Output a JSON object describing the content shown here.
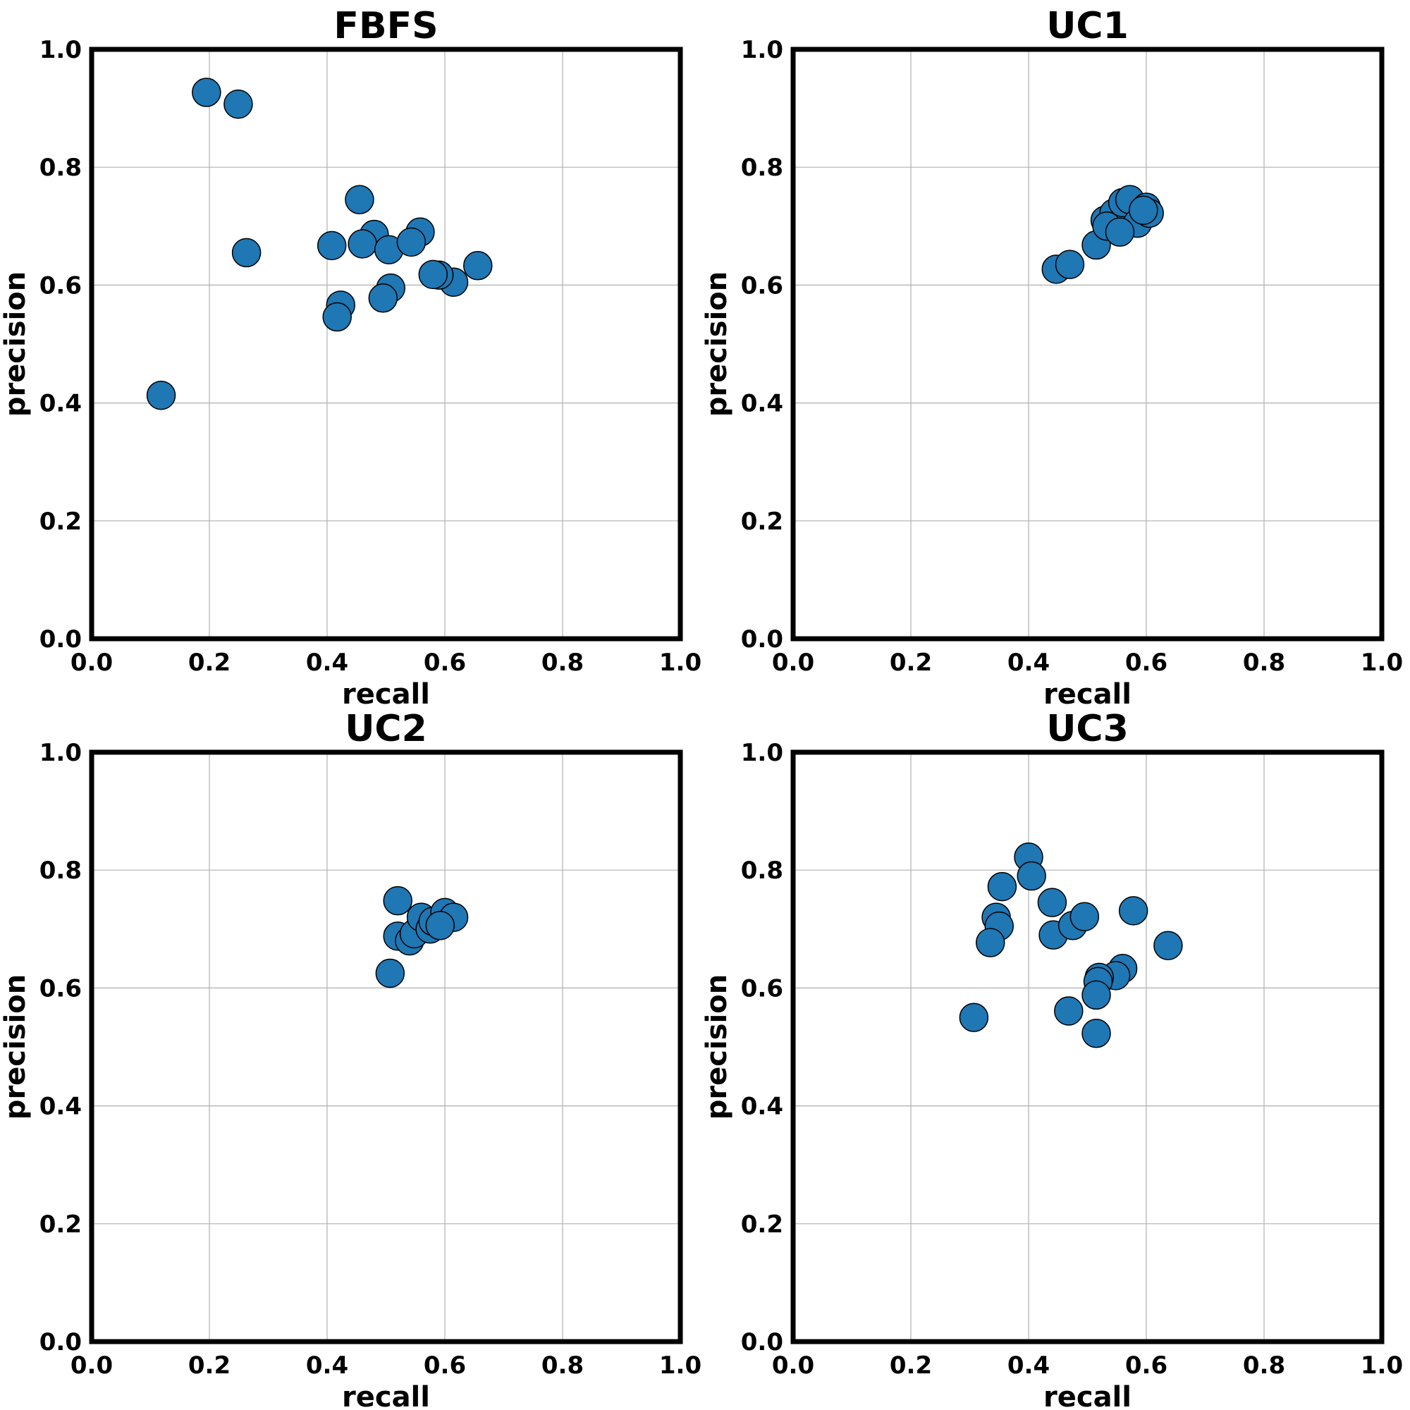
{
  "chart_data": [
    {
      "type": "scatter",
      "title": "FBFS",
      "xlabel": "recall",
      "ylabel": "precision",
      "xlim": [
        0,
        1
      ],
      "ylim": [
        0,
        1
      ],
      "xticks": [
        "0.0",
        "0.2",
        "0.4",
        "0.6",
        "0.8",
        "1.0"
      ],
      "yticks": [
        "0.0",
        "0.2",
        "0.4",
        "0.6",
        "0.8",
        "1.0"
      ],
      "grid": true,
      "color": "#1f77b4",
      "points": [
        {
          "x": 0.195,
          "y": 0.927
        },
        {
          "x": 0.249,
          "y": 0.907
        },
        {
          "x": 0.263,
          "y": 0.655
        },
        {
          "x": 0.118,
          "y": 0.413
        },
        {
          "x": 0.455,
          "y": 0.745
        },
        {
          "x": 0.408,
          "y": 0.667
        },
        {
          "x": 0.48,
          "y": 0.686
        },
        {
          "x": 0.46,
          "y": 0.67
        },
        {
          "x": 0.505,
          "y": 0.66
        },
        {
          "x": 0.558,
          "y": 0.69
        },
        {
          "x": 0.543,
          "y": 0.673
        },
        {
          "x": 0.656,
          "y": 0.633
        },
        {
          "x": 0.615,
          "y": 0.605
        },
        {
          "x": 0.59,
          "y": 0.617
        },
        {
          "x": 0.58,
          "y": 0.618
        },
        {
          "x": 0.508,
          "y": 0.595
        },
        {
          "x": 0.495,
          "y": 0.578
        },
        {
          "x": 0.423,
          "y": 0.566
        },
        {
          "x": 0.417,
          "y": 0.546
        }
      ]
    },
    {
      "type": "scatter",
      "title": "UC1",
      "xlabel": "recall",
      "ylabel": "precision",
      "xlim": [
        0,
        1
      ],
      "ylim": [
        0,
        1
      ],
      "xticks": [
        "0.0",
        "0.2",
        "0.4",
        "0.6",
        "0.8",
        "1.0"
      ],
      "yticks": [
        "0.0",
        "0.2",
        "0.4",
        "0.6",
        "0.8",
        "1.0"
      ],
      "grid": true,
      "color": "#1f77b4",
      "points": [
        {
          "x": 0.447,
          "y": 0.627
        },
        {
          "x": 0.47,
          "y": 0.635
        },
        {
          "x": 0.515,
          "y": 0.668
        },
        {
          "x": 0.53,
          "y": 0.71
        },
        {
          "x": 0.545,
          "y": 0.722
        },
        {
          "x": 0.56,
          "y": 0.74
        },
        {
          "x": 0.572,
          "y": 0.745
        },
        {
          "x": 0.585,
          "y": 0.705
        },
        {
          "x": 0.6,
          "y": 0.732
        },
        {
          "x": 0.605,
          "y": 0.722
        },
        {
          "x": 0.595,
          "y": 0.727
        },
        {
          "x": 0.533,
          "y": 0.7
        },
        {
          "x": 0.555,
          "y": 0.69
        }
      ]
    },
    {
      "type": "scatter",
      "title": "UC2",
      "xlabel": "recall",
      "ylabel": "precision",
      "xlim": [
        0,
        1
      ],
      "ylim": [
        0,
        1
      ],
      "xticks": [
        "0.0",
        "0.2",
        "0.4",
        "0.6",
        "0.8",
        "1.0"
      ],
      "yticks": [
        "0.0",
        "0.2",
        "0.4",
        "0.6",
        "0.8",
        "1.0"
      ],
      "grid": true,
      "color": "#1f77b4",
      "points": [
        {
          "x": 0.507,
          "y": 0.625
        },
        {
          "x": 0.52,
          "y": 0.748
        },
        {
          "x": 0.52,
          "y": 0.688
        },
        {
          "x": 0.54,
          "y": 0.68
        },
        {
          "x": 0.548,
          "y": 0.692
        },
        {
          "x": 0.56,
          "y": 0.72
        },
        {
          "x": 0.575,
          "y": 0.7
        },
        {
          "x": 0.58,
          "y": 0.713
        },
        {
          "x": 0.6,
          "y": 0.728
        },
        {
          "x": 0.615,
          "y": 0.72
        },
        {
          "x": 0.592,
          "y": 0.706
        }
      ]
    },
    {
      "type": "scatter",
      "title": "UC3",
      "xlabel": "recall",
      "ylabel": "precision",
      "xlim": [
        0,
        1
      ],
      "ylim": [
        0,
        1
      ],
      "xticks": [
        "0.0",
        "0.2",
        "0.4",
        "0.6",
        "0.8",
        "1.0"
      ],
      "yticks": [
        "0.0",
        "0.2",
        "0.4",
        "0.6",
        "0.8",
        "1.0"
      ],
      "grid": true,
      "color": "#1f77b4",
      "points": [
        {
          "x": 0.4,
          "y": 0.822
        },
        {
          "x": 0.405,
          "y": 0.79
        },
        {
          "x": 0.355,
          "y": 0.772
        },
        {
          "x": 0.345,
          "y": 0.72
        },
        {
          "x": 0.35,
          "y": 0.705
        },
        {
          "x": 0.335,
          "y": 0.677
        },
        {
          "x": 0.307,
          "y": 0.55
        },
        {
          "x": 0.44,
          "y": 0.745
        },
        {
          "x": 0.442,
          "y": 0.69
        },
        {
          "x": 0.475,
          "y": 0.706
        },
        {
          "x": 0.495,
          "y": 0.721
        },
        {
          "x": 0.578,
          "y": 0.731
        },
        {
          "x": 0.637,
          "y": 0.672
        },
        {
          "x": 0.56,
          "y": 0.633
        },
        {
          "x": 0.548,
          "y": 0.621
        },
        {
          "x": 0.52,
          "y": 0.618
        },
        {
          "x": 0.518,
          "y": 0.611
        },
        {
          "x": 0.515,
          "y": 0.588
        },
        {
          "x": 0.468,
          "y": 0.561
        },
        {
          "x": 0.515,
          "y": 0.523
        }
      ]
    }
  ]
}
